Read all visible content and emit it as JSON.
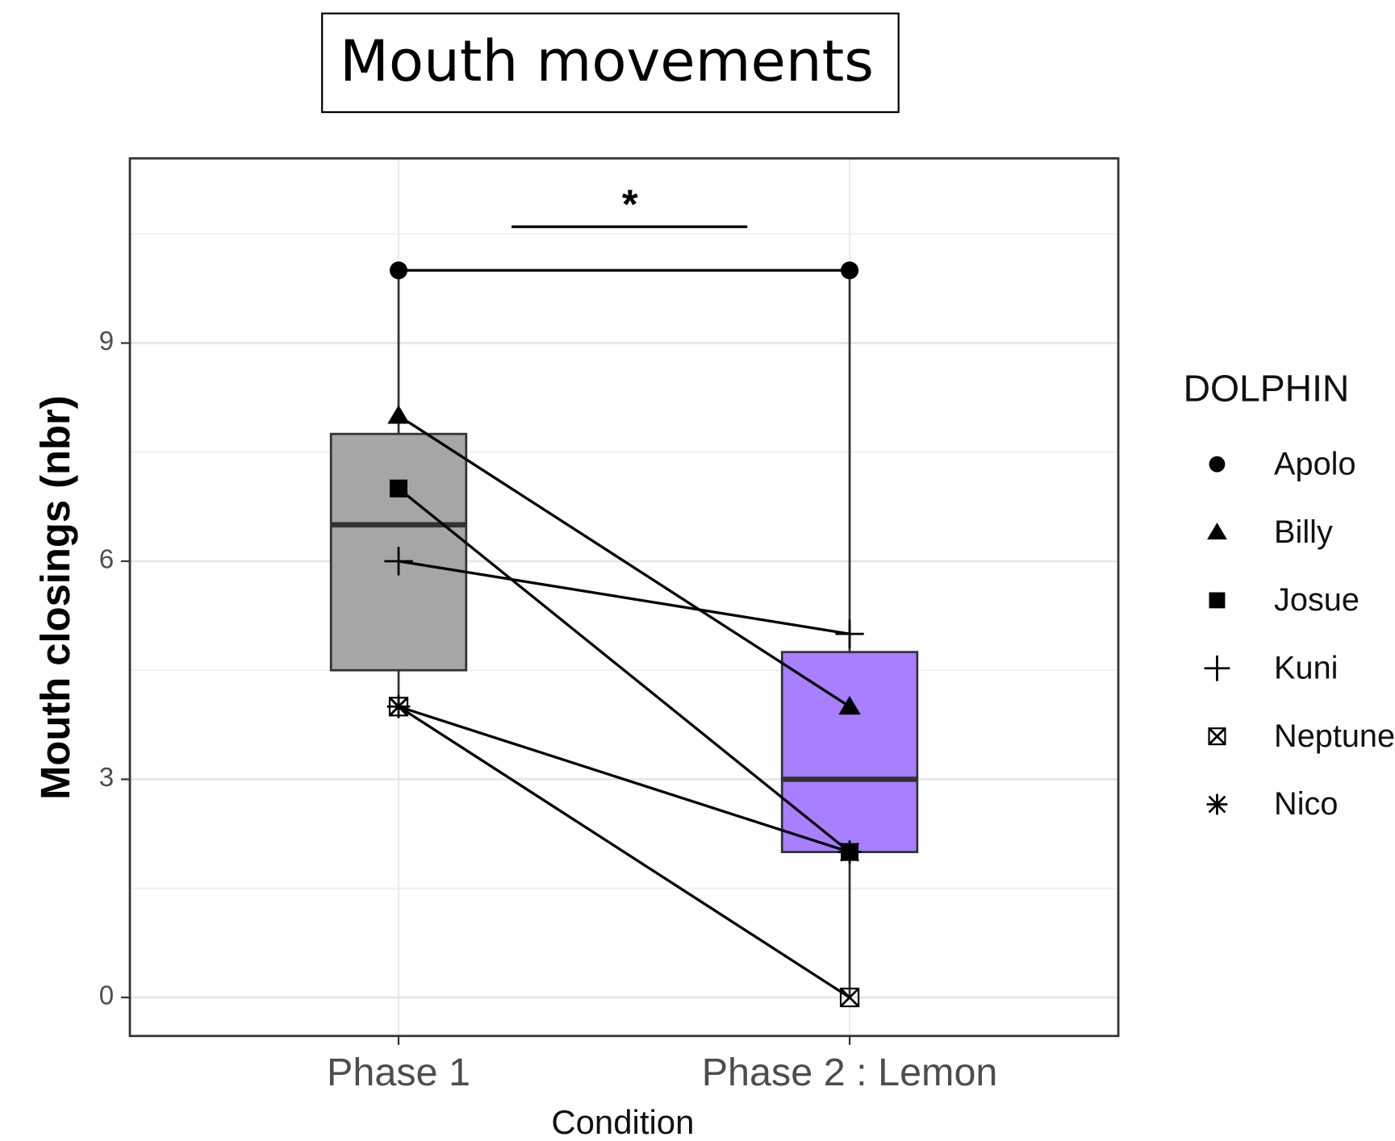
{
  "chart_data": {
    "type": "box",
    "title": "Mouth movements",
    "ylabel": "Mouth closings (nbr)",
    "xlabel": "Condition",
    "legend_title": "DOLPHIN",
    "annotation": "*",
    "annotation_y": 10.6,
    "categories": [
      "Phase 1",
      "Phase 2 : Lemon"
    ],
    "boxes": [
      {
        "color": "#a6a6a6",
        "whisker_low": 4,
        "q1": 4.5,
        "median": 6.5,
        "q3": 7.75,
        "whisker_high": 10
      },
      {
        "color": "#a87fff",
        "whisker_low": 0,
        "q1": 2,
        "median": 3,
        "q3": 4.75,
        "whisker_high": 10
      }
    ],
    "series": [
      {
        "name": "Apolo",
        "shape": "circle",
        "color": "#000000",
        "values": [
          10,
          10
        ]
      },
      {
        "name": "Billy",
        "shape": "triangle",
        "color": "#000000",
        "values": [
          8,
          4
        ]
      },
      {
        "name": "Josue",
        "shape": "square",
        "color": "#000000",
        "values": [
          7,
          2
        ]
      },
      {
        "name": "Kuni",
        "shape": "plus",
        "color": "#000000",
        "values": [
          6,
          5
        ]
      },
      {
        "name": "Neptune",
        "shape": "boxed-x",
        "color": "#000000",
        "values": [
          4,
          0
        ]
      },
      {
        "name": "Nico",
        "shape": "asterisk",
        "color": "#000000",
        "values": [
          4,
          2
        ]
      }
    ],
    "ylim": [
      -0.53,
      11.54
    ],
    "yticks": [
      0,
      3,
      6,
      9
    ],
    "grid": true,
    "legend": "right"
  }
}
